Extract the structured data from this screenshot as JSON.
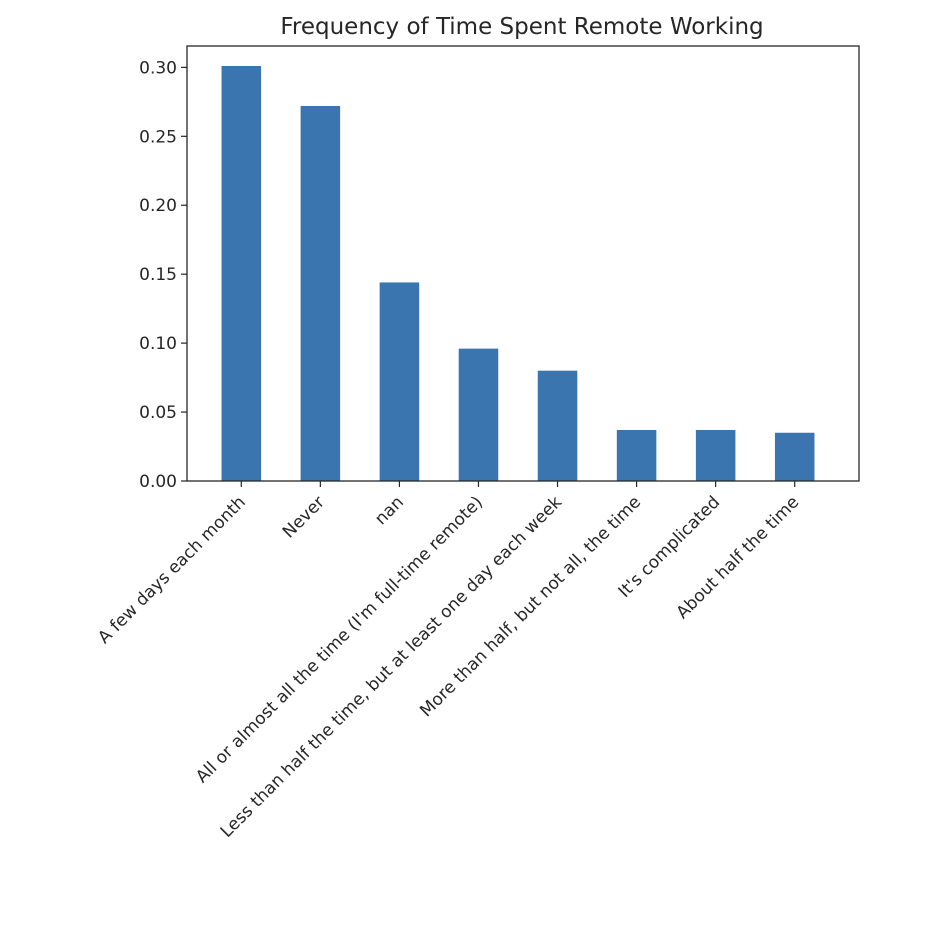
{
  "chart_data": {
    "type": "bar",
    "title": "Frequency of Time Spent Remote Working",
    "xlabel": "",
    "ylabel": "",
    "categories": [
      "A few days each month",
      "Never",
      "nan",
      "All or almost all the time (I'm full-time remote)",
      "Less than half the time, but at least one day each week",
      "More than half, but not all, the time",
      "It's complicated",
      "About half the time"
    ],
    "values": [
      0.301,
      0.272,
      0.144,
      0.096,
      0.08,
      0.037,
      0.037,
      0.035
    ],
    "ylim": [
      0,
      0.3155
    ],
    "yticks": [
      0.0,
      0.05,
      0.1,
      0.15,
      0.2,
      0.25,
      0.3
    ],
    "ytick_labels": [
      "0.00",
      "0.05",
      "0.10",
      "0.15",
      "0.20",
      "0.25",
      "0.30"
    ],
    "bar_color": "#3a75af",
    "grid": false,
    "legend": "none"
  }
}
